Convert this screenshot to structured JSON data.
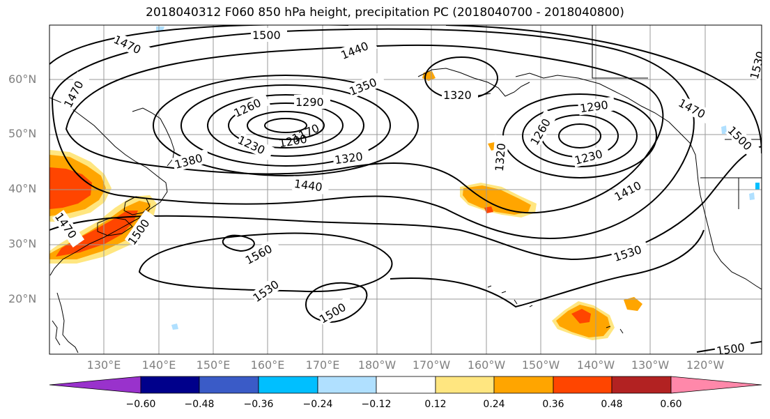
{
  "title": "2018040312 F060 850 hPa height, precipitation PC (2018040700 - 2018040800)",
  "latitude_labels": [
    "60°N",
    "50°N",
    "40°N",
    "30°N",
    "20°N"
  ],
  "longitude_labels": [
    "130°E",
    "140°E",
    "150°E",
    "160°E",
    "170°E",
    "180°W",
    "170°W",
    "160°W",
    "150°W",
    "140°W",
    "130°W",
    "120°W"
  ],
  "contour_labels": [
    "1500",
    "1470",
    "1440",
    "1350",
    "1470",
    "1290",
    "1260",
    "1170",
    "1200",
    "1230",
    "1380",
    "1320",
    "1320",
    "1290",
    "1260",
    "1230",
    "1320",
    "1470",
    "1500",
    "1530",
    "1440",
    "1410",
    "1470",
    "1500",
    "1560",
    "1530",
    "1530",
    "1500",
    "1500"
  ],
  "colorbar": {
    "ticks": [
      "−0.60",
      "−0.48",
      "−0.36",
      "−0.24",
      "−0.12",
      "0.12",
      "0.24",
      "0.36",
      "0.48",
      "0.60"
    ],
    "colors": [
      "#9932CC",
      "#00008B",
      "#3A5BC7",
      "#00BFFF",
      "#B0E0FF",
      "#FFFFFF",
      "#FFE680",
      "#FFA500",
      "#FF4500",
      "#B22222",
      "#FF88AA"
    ]
  },
  "colors": {
    "contour": "#000000",
    "coast": "#000000",
    "grid": "#9a9a9a",
    "axis_label": "#808080"
  }
}
